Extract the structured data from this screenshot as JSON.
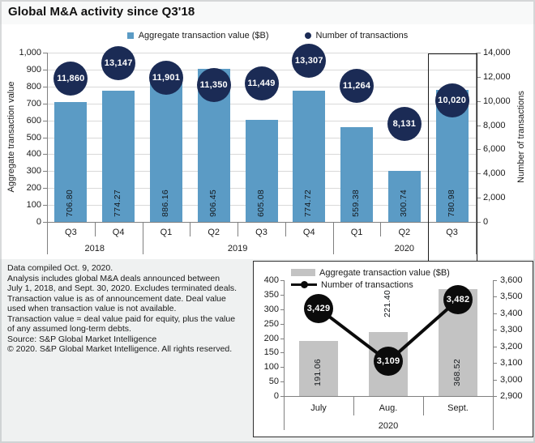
{
  "title": "Global M&A activity since Q3'18",
  "colors": {
    "bar_blue": "#5B9BC5",
    "bubble_navy": "#1B2B55",
    "inset_bar_gray": "#C3C3C3",
    "line_black": "#0B0B0B",
    "gridline": "#D9D9D9",
    "axis": "#808080"
  },
  "footnotes": [
    "Data compiled Oct. 9, 2020.",
    "Analysis includes global M&A deals announced between",
    "July 1, 2018, and Sept. 30, 2020. Excludes terminated deals.",
    "Transaction value is as of announcement date. Deal value",
    "used when transaction value is not available.",
    "Transaction value = deal value paid for equity, plus the value",
    "of any assumed long-term debts.",
    "Source: S&P Global Market Intelligence",
    "© 2020. S&P Global Market Intelligence. All rights reserved."
  ],
  "chart_data": [
    {
      "type": "bar",
      "title": "Global M&A activity since Q3'18",
      "categories": [
        "Q3",
        "Q4",
        "Q1",
        "Q2",
        "Q3",
        "Q4",
        "Q1",
        "Q2",
        "Q3"
      ],
      "year_groups": [
        {
          "label": "2018",
          "cols": 2
        },
        {
          "label": "2019",
          "cols": 4
        },
        {
          "label": "2020",
          "cols": 3
        }
      ],
      "series": [
        {
          "name": "Aggregate transaction value ($B)",
          "type": "bar",
          "axis": "left",
          "values": [
            706.8,
            774.27,
            886.16,
            906.45,
            605.08,
            774.72,
            559.38,
            300.74,
            780.98
          ],
          "labels": [
            "706.80",
            "774.27",
            "886.16",
            "906.45",
            "605.08",
            "774.72",
            "559.38",
            "300.74",
            "780.98"
          ]
        },
        {
          "name": "Number of transactions",
          "type": "point",
          "axis": "right",
          "values": [
            11860,
            13147,
            11901,
            11350,
            11449,
            13307,
            11264,
            8131,
            10020
          ],
          "labels": [
            "11,860",
            "13,147",
            "11,901",
            "11,350",
            "11,449",
            "13,307",
            "11,264",
            "8,131",
            "10,020"
          ]
        }
      ],
      "left_axis": {
        "title": "Aggregate transaction value",
        "min": 0,
        "max": 1000,
        "step": 100
      },
      "right_axis": {
        "title": "Number of transactions",
        "min": 0,
        "max": 14000,
        "step": 2000
      },
      "highlight_category_index": 8,
      "grid": true,
      "legend_position": "top"
    },
    {
      "type": "bar",
      "categories": [
        "July",
        "Aug.",
        "Sept."
      ],
      "year_label": "2020",
      "series": [
        {
          "name": "Aggregate transaction value ($B)",
          "type": "bar",
          "axis": "left",
          "values": [
            191.06,
            221.4,
            368.52
          ],
          "labels": [
            "191.06",
            "221.40",
            "368.52"
          ]
        },
        {
          "name": "Number of transactions",
          "type": "line-circle",
          "axis": "right",
          "values": [
            3429,
            3109,
            3482
          ],
          "labels": [
            "3,429",
            "3,109",
            "3,482"
          ]
        }
      ],
      "left_axis": {
        "min": 0,
        "max": 400,
        "step": 50
      },
      "right_axis": {
        "min": 2900,
        "max": 3600,
        "step": 100
      },
      "grid": false,
      "legend_position": "top-left-inside"
    }
  ]
}
